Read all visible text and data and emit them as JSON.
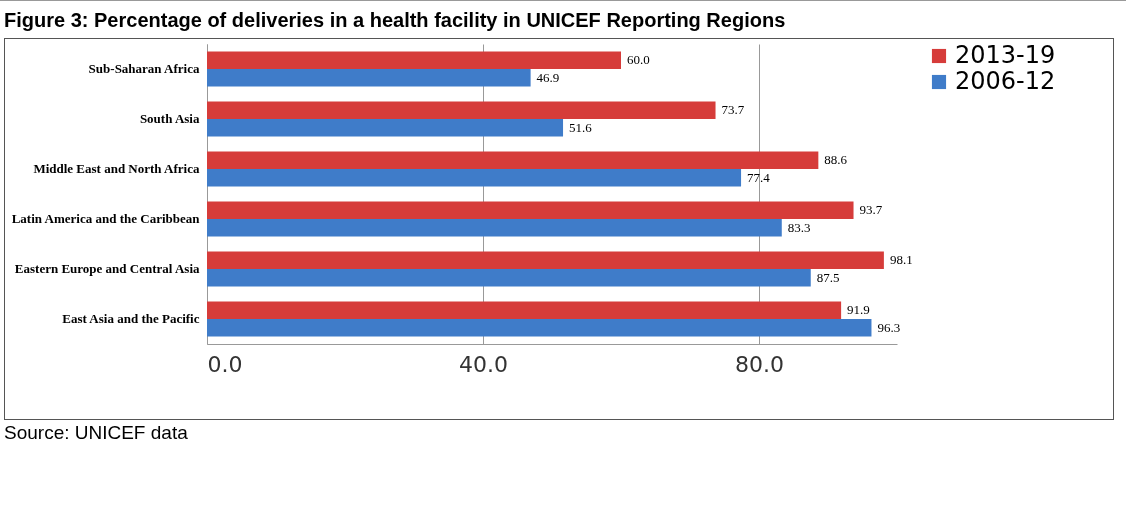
{
  "chart_data": {
    "type": "bar",
    "orientation": "horizontal",
    "title": "Figure 3: Percentage of deliveries in a health facility in UNICEF Reporting Regions",
    "annotations": [
      "Source: UNICEF data"
    ],
    "categories": [
      "Sub-Saharan Africa",
      "South Asia",
      "Middle East and North Africa",
      "Latin America and the Caribbean",
      "Eastern Europe and Central Asia",
      "East Asia and the Pacific"
    ],
    "series": [
      {
        "name": "2013-19",
        "color": "#d63c3a",
        "values": [
          60.0,
          73.7,
          88.6,
          93.7,
          98.1,
          91.9
        ],
        "value_labels": [
          "60.0",
          "73.7",
          "88.6",
          "93.7",
          "98.1",
          "91.9"
        ]
      },
      {
        "name": "2006-12",
        "color": "#3f7cc9",
        "values": [
          46.9,
          51.6,
          77.4,
          83.3,
          87.5,
          96.3
        ],
        "value_labels": [
          "46.9",
          "51.6",
          "77.4",
          "83.3",
          "87.5",
          "96.3"
        ]
      }
    ],
    "xlim": [
      0,
      100
    ],
    "xticks": [
      {
        "value": 0,
        "label": "0.0"
      },
      {
        "value": 40,
        "label": "40.0"
      },
      {
        "value": 80,
        "label": "80.0"
      }
    ],
    "grid": "x",
    "legend": "right"
  }
}
